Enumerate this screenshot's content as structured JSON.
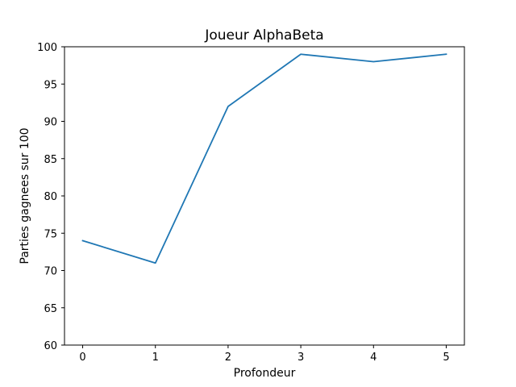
{
  "chart_data": {
    "type": "line",
    "title": "Joueur AlphaBeta",
    "xlabel": "Profondeur",
    "ylabel": "Parties gagnees sur 100",
    "x": [
      0,
      1,
      2,
      3,
      4,
      5
    ],
    "series": [
      {
        "values": [
          74,
          71,
          92,
          99,
          98,
          99
        ],
        "color": "#1f77b4"
      }
    ],
    "xlim": [
      -0.25,
      5.25
    ],
    "ylim": [
      60,
      100
    ],
    "xticks": [
      0,
      1,
      2,
      3,
      4,
      5
    ],
    "yticks": [
      60,
      65,
      70,
      75,
      80,
      85,
      90,
      95,
      100
    ],
    "grid": false,
    "legend": false
  }
}
